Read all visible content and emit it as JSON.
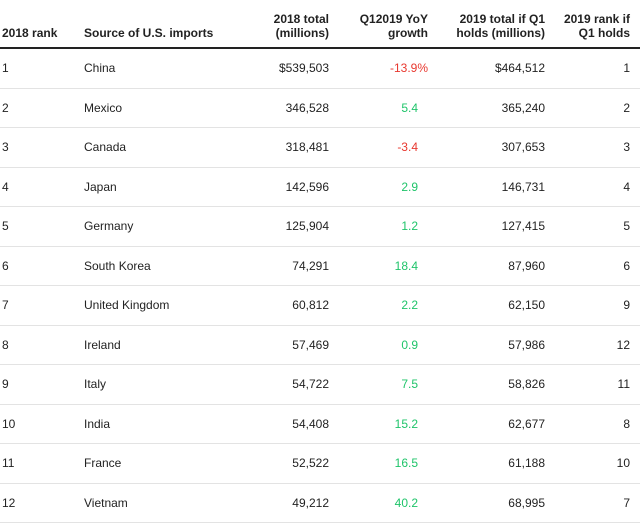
{
  "table": {
    "headers": [
      "2018 rank",
      "Source of U.S. imports",
      "2018 total (millions)",
      "Q12019 YoY growth",
      "2019 total if Q1 holds (millions)",
      "2019 rank if Q1 holds"
    ],
    "rows": [
      [
        "1",
        "China",
        "$539,503",
        "-13.9%",
        "$464,512",
        "1"
      ],
      [
        "2",
        "Mexico",
        "346,528",
        "5.4",
        "365,240",
        "2"
      ],
      [
        "3",
        "Canada",
        "318,481",
        "-3.4",
        "307,653",
        "3"
      ],
      [
        "4",
        "Japan",
        "142,596",
        "2.9",
        "146,731",
        "4"
      ],
      [
        "5",
        "Germany",
        "125,904",
        "1.2",
        "127,415",
        "5"
      ],
      [
        "6",
        "South Korea",
        "74,291",
        "18.4",
        "87,960",
        "6"
      ],
      [
        "7",
        "United Kingdom",
        "60,812",
        "2.2",
        "62,150",
        "9"
      ],
      [
        "8",
        "Ireland",
        "57,469",
        "0.9",
        "57,986",
        "12"
      ],
      [
        "9",
        "Italy",
        "54,722",
        "7.5",
        "58,826",
        "11"
      ],
      [
        "10",
        "India",
        "54,408",
        "15.2",
        "62,677",
        "8"
      ],
      [
        "11",
        "France",
        "52,522",
        "16.5",
        "61,188",
        "10"
      ],
      [
        "12",
        "Vietnam",
        "49,212",
        "40.2",
        "68,995",
        "7"
      ]
    ]
  }
}
